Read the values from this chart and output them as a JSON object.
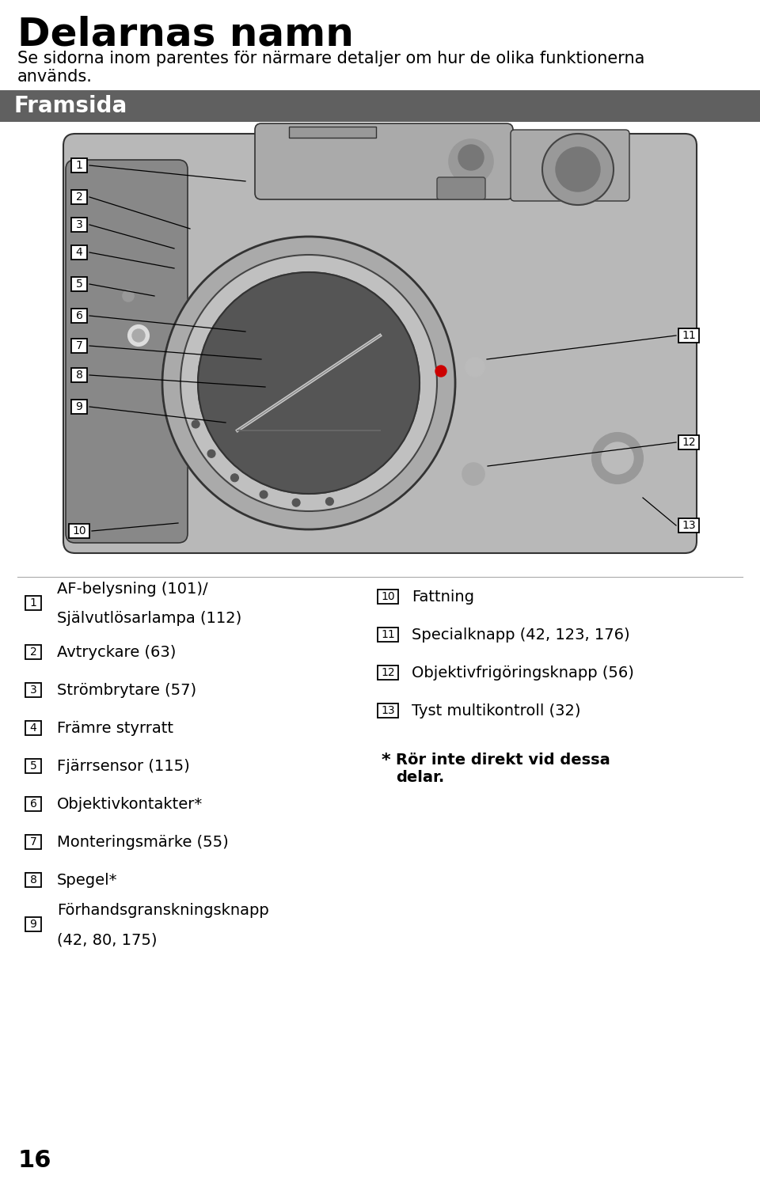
{
  "title": "Delarnas namn",
  "subtitle_line1": "Se sidorna inom parentes för närmare detaljer om hur de olika funktionerna",
  "subtitle_line2": "används.",
  "section_header": "Framsida",
  "section_header_bg": "#606060",
  "section_header_text_color": "#ffffff",
  "background_color": "#ffffff",
  "title_color": "#000000",
  "title_fontsize": 36,
  "subtitle_fontsize": 15,
  "header_fontsize": 20,
  "items_left": [
    {
      "num": "1",
      "text1": "AF-belysning (101)/",
      "text2": "Självutlösarlampa (112)"
    },
    {
      "num": "2",
      "text1": "Avtryckare (63)",
      "text2": null
    },
    {
      "num": "3",
      "text1": "Strömbrytare (57)",
      "text2": null
    },
    {
      "num": "4",
      "text1": "Främre styrratt",
      "text2": null
    },
    {
      "num": "5",
      "text1": "Fjärrsensor (115)",
      "text2": null
    },
    {
      "num": "6",
      "text1": "Objektivkontakter*",
      "text2": null
    },
    {
      "num": "7",
      "text1": "Monteringsmärke (55)",
      "text2": null
    },
    {
      "num": "8",
      "text1": "Spegel*",
      "text2": null
    },
    {
      "num": "9",
      "text1": "Förhandsgranskningsknapp",
      "text2": "(42, 80, 175)"
    }
  ],
  "items_right": [
    {
      "num": "10",
      "text1": "Fattning",
      "text2": null
    },
    {
      "num": "11",
      "text1": "Specialknapp (42, 123, 176)",
      "text2": null
    },
    {
      "num": "12",
      "text1": "Objektivfrigöringsknapp (56)",
      "text2": null
    },
    {
      "num": "13",
      "text1": "Tyst multikontroll (32)",
      "text2": null
    }
  ],
  "note_star": "*",
  "note_text": "Rör inte direkt vid dessa",
  "note_text2": "delar.",
  "page_number": "16",
  "item_fontsize": 14,
  "note_fontsize": 14,
  "page_fontsize": 22,
  "fig_width": 9.6,
  "fig_height": 15.19,
  "dpi": 100
}
